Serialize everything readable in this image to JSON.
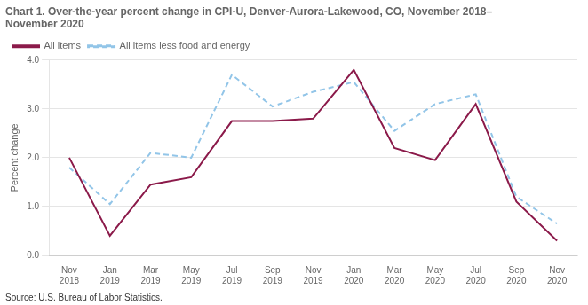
{
  "chart_data": {
    "type": "line",
    "title": [
      "Chart 1. Over-the-year percent change in CPI-U, Denver-Aurora-Lakewood, CO, November 2018–",
      "November 2020"
    ],
    "ylabel": "Percent change",
    "source": "Source: U.S. Bureau of Labor Statistics.",
    "categories": [
      "Nov\n2018",
      "Jan\n2019",
      "Mar\n2019",
      "May\n2019",
      "Jul\n2019",
      "Sep\n2019",
      "Nov\n2019",
      "Jan\n2020",
      "Mar\n2020",
      "May\n2020",
      "Jul\n2020",
      "Sep\n2020",
      "Nov\n2020"
    ],
    "series": [
      {
        "name": "All items",
        "color": "#8B1A4A",
        "line_style": "solid",
        "values": [
          2.0,
          0.4,
          1.45,
          1.6,
          2.75,
          2.75,
          2.8,
          3.8,
          2.2,
          1.95,
          3.1,
          1.1,
          0.3
        ]
      },
      {
        "name": "All items less food and energy",
        "color": "#92C5E8",
        "line_style": "dashed",
        "values": [
          1.8,
          1.05,
          2.1,
          2.0,
          3.7,
          3.05,
          3.35,
          3.55,
          2.55,
          3.1,
          3.3,
          1.2,
          0.65
        ]
      }
    ],
    "ylim": [
      0.0,
      4.0
    ],
    "yticks": [
      {
        "value": 0.0,
        "label": "0.0"
      },
      {
        "value": 1.0,
        "label": "1.0"
      },
      {
        "value": 2.0,
        "label": "2.0"
      },
      {
        "value": 3.0,
        "label": "3.0"
      },
      {
        "value": 4.0,
        "label": "4.0"
      }
    ],
    "grid": true,
    "legend": "top"
  }
}
